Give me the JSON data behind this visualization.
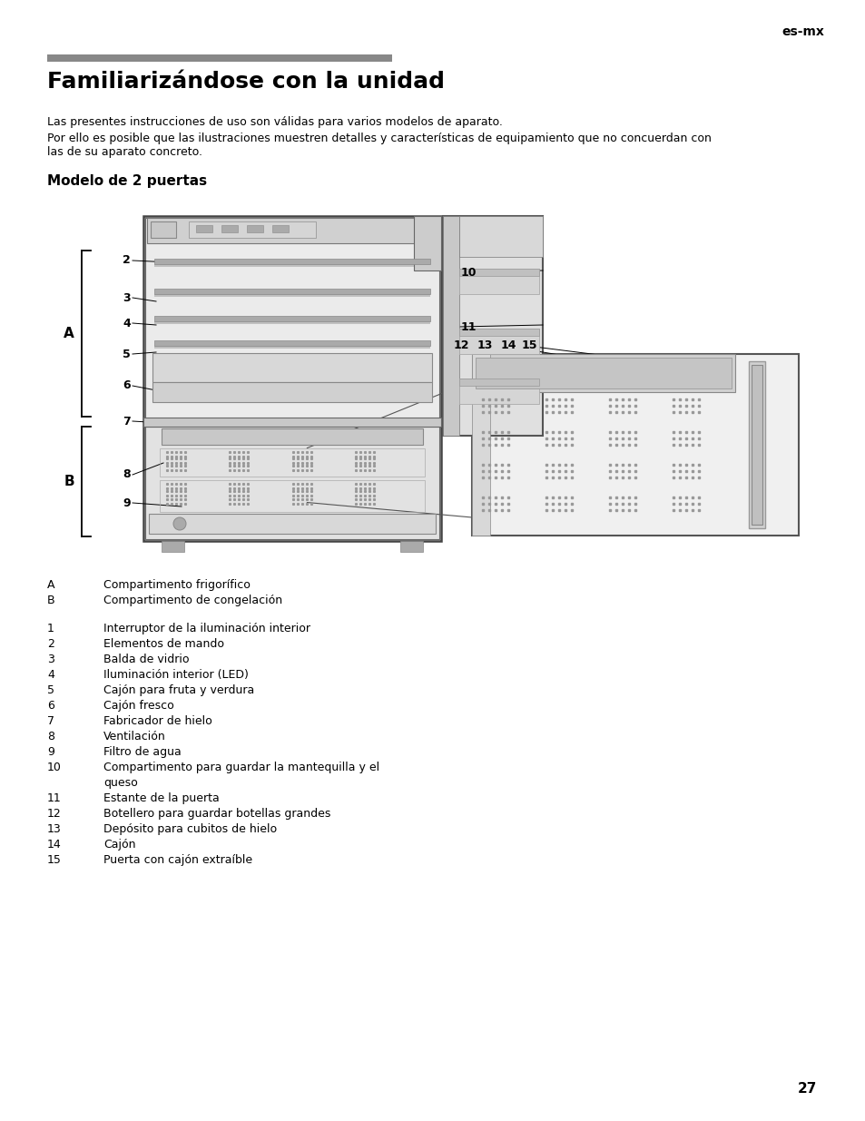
{
  "page_bg": "#ffffff",
  "header_text": "es-mx",
  "title_bar_color": "#888888",
  "title": "Familiarizándose con la unidad",
  "body_text1": "Las presentes instrucciones de uso son válidas para varios modelos de aparato.",
  "body_text2_line1": "Por ello es posible que las ilustraciones muestren detalles y características de equipamiento que no concuerdan con",
  "body_text2_line2": "las de su aparato concreto.",
  "subtitle": "Modelo de 2 puertas",
  "legend_items": [
    [
      "A",
      "Compartimento frigorífico"
    ],
    [
      "B",
      "Compartimento de congelación"
    ]
  ],
  "numbered_items": [
    [
      "1",
      "Interruptor de la iluminación interior"
    ],
    [
      "2",
      "Elementos de mando"
    ],
    [
      "3",
      "Balda de vidrio"
    ],
    [
      "4",
      "Iluminación interior (LED)"
    ],
    [
      "5",
      "Cajón para fruta y verdura"
    ],
    [
      "6",
      "Cajón fresco"
    ],
    [
      "7",
      "Fabricador de hielo"
    ],
    [
      "8",
      "Ventilación"
    ],
    [
      "9",
      "Filtro de agua"
    ],
    [
      "10",
      "Compartimento para guardar la mantequilla y el"
    ],
    [
      "",
      "queso"
    ],
    [
      "11",
      "Estante de la puerta"
    ],
    [
      "12",
      "Botellero para guardar botellas grandes"
    ],
    [
      "13",
      "Depósito para cubitos de hielo"
    ],
    [
      "14",
      "Cajón"
    ],
    [
      "15",
      "Puerta con cajón extraíble"
    ]
  ],
  "page_number": "27",
  "diagram_image_path": null
}
